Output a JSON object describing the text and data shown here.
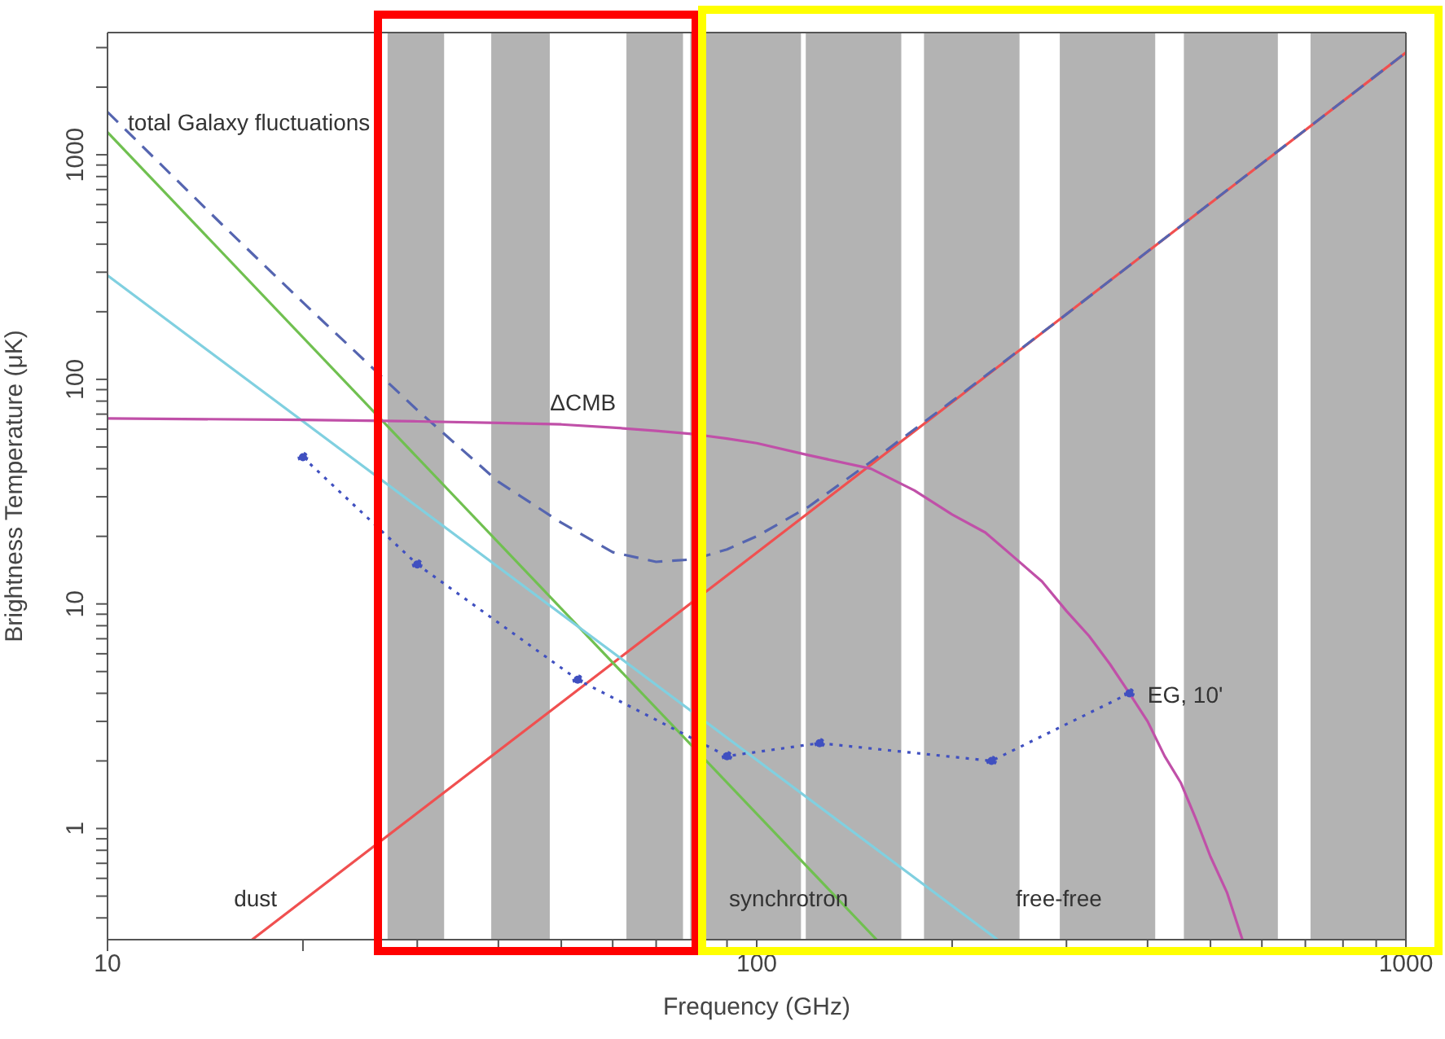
{
  "chart_data": {
    "type": "line",
    "xlabel": "Frequency (GHz)",
    "ylabel": "Brightness Temperature (μK)",
    "log": "xy",
    "xlim": [
      10,
      1000
    ],
    "ylim": [
      0.32,
      3500
    ],
    "xticks": [
      10,
      {
        "value": 20,
        "label": null
      },
      {
        "value": 30,
        "label": null
      },
      {
        "value": 40,
        "label": null
      },
      {
        "value": 50,
        "label": null
      },
      {
        "value": 60,
        "label": null
      },
      {
        "value": 70,
        "label": null
      },
      {
        "value": 80,
        "label": null
      },
      {
        "value": 90,
        "label": null
      },
      100,
      {
        "value": 200,
        "label": null
      },
      {
        "value": 300,
        "label": null
      },
      {
        "value": 400,
        "label": null
      },
      {
        "value": 500,
        "label": null
      },
      {
        "value": 600,
        "label": null
      },
      {
        "value": 700,
        "label": null
      },
      {
        "value": 800,
        "label": null
      },
      {
        "value": 900,
        "label": null
      },
      1000
    ],
    "yticks": [
      {
        "value": 0.4,
        "label": null
      },
      {
        "value": 0.5,
        "label": null
      },
      {
        "value": 0.6,
        "label": null
      },
      {
        "value": 0.7,
        "label": null
      },
      {
        "value": 0.8,
        "label": null
      },
      {
        "value": 0.9,
        "label": null
      },
      1,
      {
        "value": 2,
        "label": null
      },
      {
        "value": 3,
        "label": null
      },
      {
        "value": 4,
        "label": null
      },
      {
        "value": 5,
        "label": null
      },
      {
        "value": 6,
        "label": null
      },
      {
        "value": 7,
        "label": null
      },
      {
        "value": 8,
        "label": null
      },
      {
        "value": 9,
        "label": null
      },
      10,
      {
        "value": 20,
        "label": null
      },
      {
        "value": 30,
        "label": null
      },
      {
        "value": 40,
        "label": null
      },
      {
        "value": 50,
        "label": null
      },
      {
        "value": 60,
        "label": null
      },
      {
        "value": 70,
        "label": null
      },
      {
        "value": 80,
        "label": null
      },
      {
        "value": 90,
        "label": null
      },
      100,
      {
        "value": 200,
        "label": null
      },
      {
        "value": 300,
        "label": null
      },
      {
        "value": 400,
        "label": null
      },
      {
        "value": 500,
        "label": null
      },
      {
        "value": 600,
        "label": null
      },
      {
        "value": 700,
        "label": null
      },
      {
        "value": 800,
        "label": null
      },
      {
        "value": 900,
        "label": null
      },
      1000,
      {
        "value": 2000,
        "label": null
      },
      {
        "value": 3000,
        "label": null
      }
    ],
    "bands": [
      {
        "axis": "x",
        "from": 27,
        "to": 33,
        "color": "#b3b3b3"
      },
      {
        "axis": "x",
        "from": 39,
        "to": 48,
        "color": "#b3b3b3"
      },
      {
        "axis": "x",
        "from": 63,
        "to": 77,
        "color": "#b3b3b3"
      },
      {
        "axis": "x",
        "from": 79,
        "to": 117,
        "color": "#b3b3b3"
      },
      {
        "axis": "x",
        "from": 119,
        "to": 167,
        "color": "#b3b3b3"
      },
      {
        "axis": "x",
        "from": 181,
        "to": 254,
        "color": "#b3b3b3"
      },
      {
        "axis": "x",
        "from": 293,
        "to": 411,
        "color": "#b3b3b3"
      },
      {
        "axis": "x",
        "from": 455,
        "to": 635,
        "color": "#b3b3b3"
      },
      {
        "axis": "x",
        "from": 713,
        "to": 1000,
        "color": "#b3b3b3"
      }
    ],
    "series": [
      {
        "name": "dust",
        "color": "#f05050",
        "line_style": "solid",
        "marker": "none",
        "x": [
          16.7,
          100,
          1000
        ],
        "values": [
          0.32,
          16.9,
          2850
        ]
      },
      {
        "name": "synchrotron",
        "color": "#70c050",
        "line_style": "solid",
        "marker": "none",
        "x": [
          10,
          153
        ],
        "values": [
          1260,
          0.32
        ]
      },
      {
        "name": "free-free",
        "color": "#80d0e0",
        "line_style": "solid",
        "marker": "none",
        "x": [
          10,
          235
        ],
        "values": [
          290,
          0.32
        ]
      },
      {
        "name": "total Galaxy fluctuations",
        "color": "#5565b0",
        "line_style": "dashed",
        "marker": "none",
        "x": [
          10,
          15,
          20,
          30,
          40,
          50,
          60,
          70,
          80,
          90,
          100,
          120,
          150,
          200,
          300,
          500,
          1000
        ],
        "values": [
          1550,
          490,
          220,
          73,
          35,
          23,
          17,
          15.4,
          15.8,
          17.5,
          20,
          27,
          43,
          80,
          195,
          610,
          2850
        ]
      },
      {
        "name": "ΔCMB",
        "color": "#c050a8",
        "line_style": "solid",
        "marker": "none",
        "x": [
          10,
          20,
          30,
          40,
          50,
          60,
          70,
          80,
          90,
          100,
          120,
          150,
          175,
          200,
          225,
          250,
          275,
          300,
          325,
          350,
          375,
          400,
          425,
          450,
          475,
          500,
          530,
          560
        ],
        "values": [
          67,
          66,
          65,
          64,
          63,
          61,
          59,
          57,
          54.5,
          52,
          46,
          40,
          32,
          25,
          20.8,
          16,
          12.6,
          9.3,
          7.2,
          5.4,
          4,
          3,
          2.1,
          1.6,
          1.1,
          0.75,
          0.52,
          0.32
        ]
      },
      {
        "name": "EG, 10'",
        "color": "#4050c0",
        "line_style": "dotted",
        "marker": "circle",
        "x": [
          20,
          30,
          53,
          90,
          125,
          230,
          375
        ],
        "values": [
          45,
          15,
          4.6,
          2.1,
          2.4,
          2,
          4
        ]
      }
    ]
  }
}
